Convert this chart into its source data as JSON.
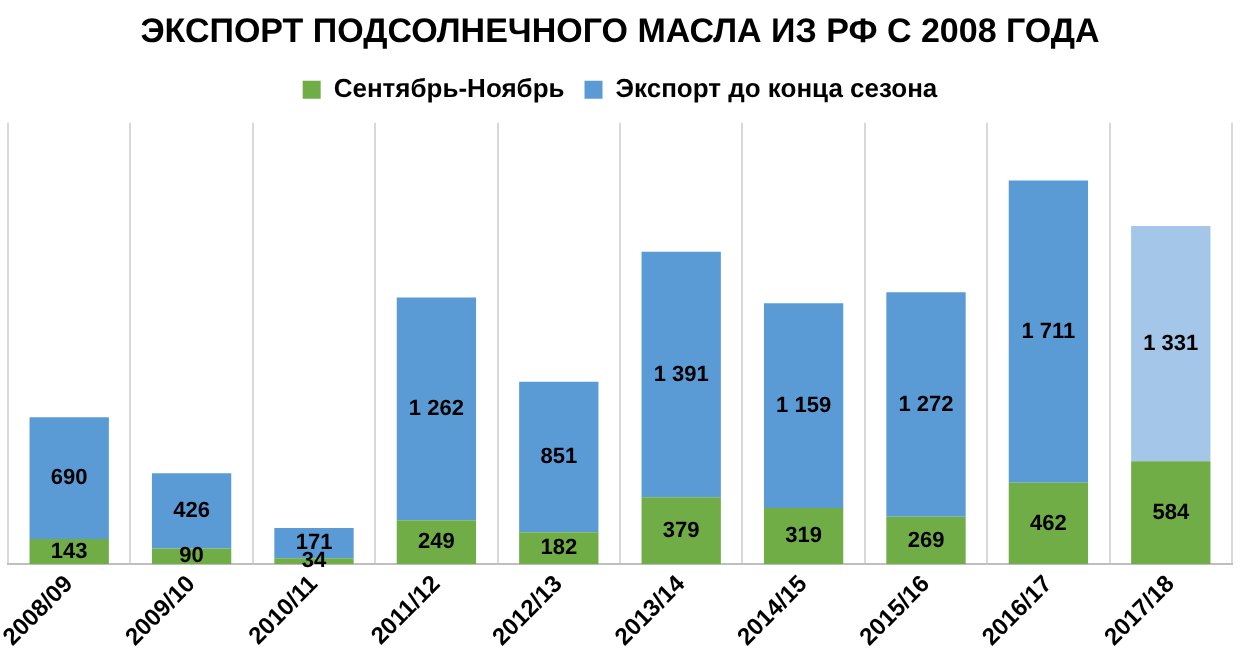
{
  "chart_data": {
    "type": "bar",
    "title": "ЭКСПОРТ ПОДСОЛНЕЧНОГО МАСЛА ИЗ РФ С 2008 ГОДА",
    "categories": [
      "2008/09",
      "2009/10",
      "2010/11",
      "2011/12",
      "2012/13",
      "2013/14",
      "2014/15",
      "2015/16",
      "2016/17",
      "2017/18"
    ],
    "stacked": true,
    "grid": "x",
    "legend": "top",
    "series": [
      {
        "name": "Сентябрь-Ноябрь",
        "color": "#70ad47",
        "values": [
          143,
          90,
          34,
          249,
          182,
          379,
          319,
          269,
          462,
          584
        ],
        "value_labels": [
          "143",
          "90",
          "34",
          "249",
          "182",
          "379",
          "319",
          "269",
          "462",
          "584"
        ]
      },
      {
        "name": "Экспорт до конца сезона",
        "color": "#5b9bd5",
        "colors": [
          "#5b9bd5",
          "#5b9bd5",
          "#5b9bd5",
          "#5b9bd5",
          "#5b9bd5",
          "#5b9bd5",
          "#5b9bd5",
          "#5b9bd5",
          "#5b9bd5",
          "#a4c6e9"
        ],
        "values": [
          690,
          426,
          171,
          1262,
          851,
          1391,
          1159,
          1272,
          1711,
          1331
        ],
        "value_labels": [
          "690",
          "426",
          "171",
          "1 262",
          "851",
          "1 391",
          "1 159",
          "1 272",
          "1 711",
          "1 331"
        ]
      }
    ]
  }
}
